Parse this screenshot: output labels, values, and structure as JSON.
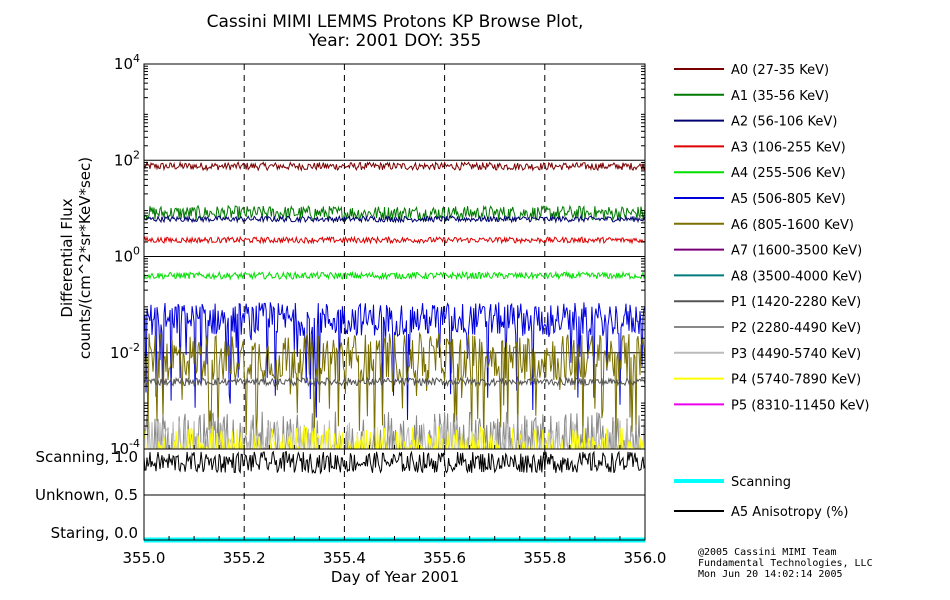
{
  "chart_data": {
    "type": "line",
    "title_line1": "Cassini MIMI LEMMS Protons KP Browse Plot,",
    "title_line2": "Year: 2001 DOY: 355",
    "xlabel": "Day of Year 2001",
    "ylabel_line1": "Differential Flux",
    "ylabel_line2": "counts/(cm^2*sr*KeV*sec)",
    "xlim": [
      355.0,
      356.0
    ],
    "x_ticks": [
      "355.0",
      "355.2",
      "355.4",
      "355.6",
      "355.8",
      "356.0"
    ],
    "x_tick_values": [
      355.0,
      355.2,
      355.4,
      355.6,
      355.8,
      356.0
    ],
    "y_scale": "log",
    "ylim": [
      0.0001,
      10000
    ],
    "y_ticks": [
      {
        "exp_base": "10",
        "exp": "4",
        "value": 10000
      },
      {
        "exp_base": "10",
        "exp": "2",
        "value": 100
      },
      {
        "exp_base": "10",
        "exp": "0",
        "value": 1
      },
      {
        "exp_base": "10",
        "exp": "-2",
        "value": 0.01
      },
      {
        "exp_base": "10",
        "exp": "-4",
        "value": 0.0001
      }
    ],
    "series": [
      {
        "name": "A0 (27-35 KeV)",
        "color": "#7a0000",
        "level": 75,
        "spread": 0.08
      },
      {
        "name": "A1 (35-56 KeV)",
        "color": "#007a00",
        "level": 8,
        "spread": 0.15
      },
      {
        "name": "A2 (56-106 KeV)",
        "color": "#000070",
        "level": 6,
        "spread": 0.06
      },
      {
        "name": "A3 (106-255 KeV)",
        "color": "#dd0000",
        "level": 2.2,
        "spread": 0.06
      },
      {
        "name": "A4 (255-506 KeV)",
        "color": "#00e000",
        "level": 0.4,
        "spread": 0.07
      },
      {
        "name": "A5 (506-805 KeV)",
        "color": "#0000dd",
        "level": 0.05,
        "spread": 0.35
      },
      {
        "name": "A6 (805-1600 KeV)",
        "color": "#7a7000",
        "level": 0.008,
        "spread": 0.5
      },
      {
        "name": "A7 (1600-3500 KeV)",
        "color": "#7a007a",
        "level": null,
        "spread": 0
      },
      {
        "name": "A8 (3500-4000 KeV)",
        "color": "#007a7a",
        "level": null,
        "spread": 0
      },
      {
        "name": "P1 (1420-2280 KeV)",
        "color": "#555555",
        "level": 0.0025,
        "spread": 0.08
      },
      {
        "name": "P2 (2280-4490 KeV)",
        "color": "#888888",
        "level": 0.0003,
        "spread": 0.3
      },
      {
        "name": "P3 (4490-5740 KeV)",
        "color": "#bbbbbb",
        "level": 0.0002,
        "spread": 0.3
      },
      {
        "name": "P4 (5740-7890 KeV)",
        "color": "#ffff00",
        "level": 0.00015,
        "spread": 0.3
      },
      {
        "name": "P5 (8310-11450 KeV)",
        "color": "#ee00ee",
        "level": null,
        "spread": 0
      }
    ],
    "lower_panel": {
      "y_labels": [
        "Scanning, 1.0",
        "Unknown, 0.5",
        "Staring, 0.0"
      ],
      "y_values": [
        1.0,
        0.5,
        0.0
      ],
      "series": [
        {
          "name": "Scanning",
          "color": "#00ffff",
          "value": 0.0
        },
        {
          "name": "A5 Anisotropy (%)",
          "color": "#000000",
          "value": 0.93
        }
      ]
    }
  },
  "credits": [
    "@2005 Cassini MIMI Team",
    "Fundamental Technologies, LLC",
    "Mon Jun 20 14:02:14 2005"
  ]
}
